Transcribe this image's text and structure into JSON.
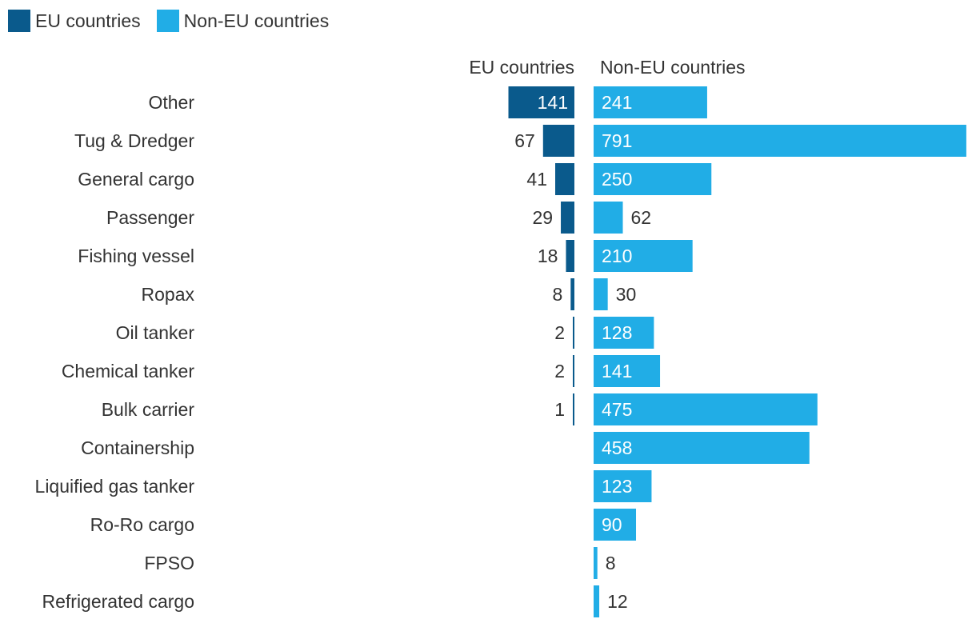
{
  "chart_data": {
    "type": "bar",
    "orientation": "horizontal",
    "layout": "butterfly",
    "legend_position": "top-left",
    "categories": [
      "Other",
      "Tug & Dredger",
      "General cargo",
      "Passenger",
      "Fishing vessel",
      "Ropax",
      "Oil tanker",
      "Chemical tanker",
      "Bulk carrier",
      "Containership",
      "Liquified gas tanker",
      "Ro-Ro cargo",
      "FPSO",
      "Refrigerated cargo"
    ],
    "series": [
      {
        "name": "EU countries",
        "color": "#0a5a8c",
        "values": [
          141,
          67,
          41,
          29,
          18,
          8,
          2,
          2,
          1,
          null,
          null,
          null,
          null,
          null
        ]
      },
      {
        "name": "Non-EU countries",
        "color": "#21ade6",
        "values": [
          241,
          791,
          250,
          62,
          210,
          30,
          128,
          141,
          475,
          458,
          123,
          90,
          8,
          12
        ]
      }
    ],
    "column_headers": [
      "EU countries",
      "Non-EU countries"
    ],
    "title": "",
    "xlabel": "",
    "ylabel": "",
    "grid": false
  }
}
